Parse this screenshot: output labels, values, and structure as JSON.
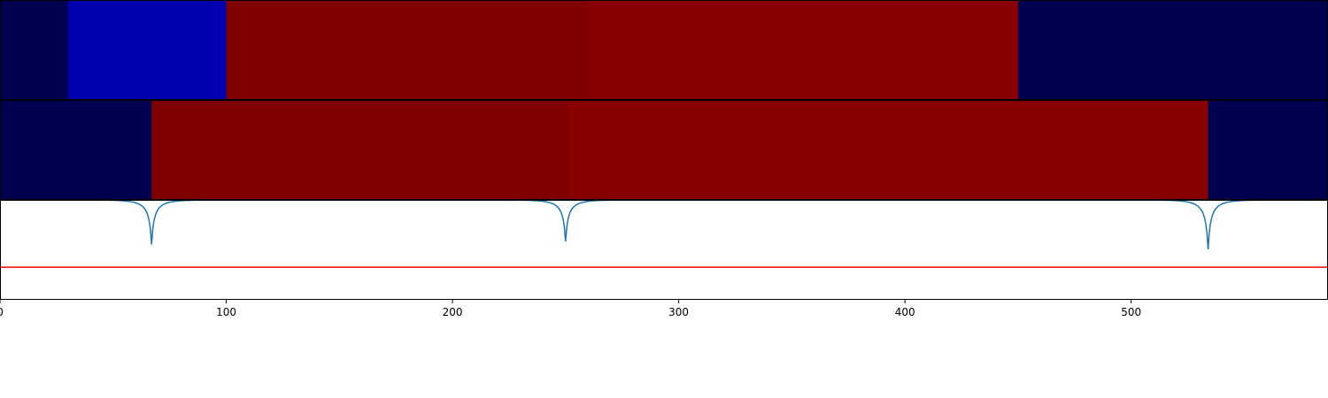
{
  "chart_data": [
    {
      "type": "heatmap",
      "panel": "top",
      "segments": [
        {
          "start": 0,
          "end": 30,
          "color": "#000050"
        },
        {
          "start": 30,
          "end": 100,
          "color": "#0000b0"
        },
        {
          "start": 100,
          "end": 260,
          "color": "#7f0000"
        },
        {
          "start": 260,
          "end": 450,
          "color": "#880000"
        },
        {
          "start": 450,
          "end": 587,
          "color": "#000050"
        }
      ]
    },
    {
      "type": "heatmap",
      "panel": "middle",
      "segments": [
        {
          "start": 0,
          "end": 67,
          "color": "#000050"
        },
        {
          "start": 67,
          "end": 251,
          "color": "#7f0000"
        },
        {
          "start": 251,
          "end": 534,
          "color": "#880000"
        },
        {
          "start": 534,
          "end": 587,
          "color": "#000050"
        }
      ]
    },
    {
      "type": "line",
      "panel": "bottom",
      "xlim": [
        0,
        587
      ],
      "ylim": [
        -1.0,
        0.0
      ],
      "grid": false,
      "x_ticks": [
        0,
        100,
        200,
        300,
        400,
        500
      ],
      "x_tick_labels": [
        "0",
        "100",
        "200",
        "300",
        "400",
        "500"
      ],
      "series": [
        {
          "color": "#1f77b4",
          "baseline": 0.0,
          "dips": [
            {
              "center": 67,
              "depth": -0.45
            },
            {
              "center": 250,
              "depth": -0.42
            },
            {
              "center": 534,
              "depth": -0.5
            }
          ]
        }
      ],
      "threshold": {
        "value": -0.68,
        "color": "#ff0000"
      }
    }
  ]
}
